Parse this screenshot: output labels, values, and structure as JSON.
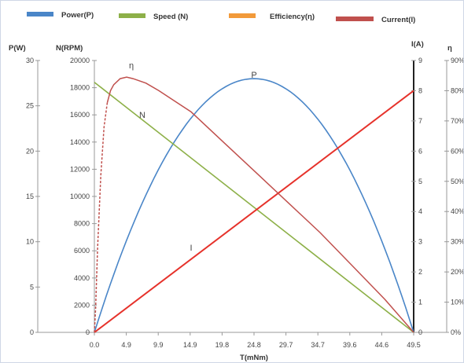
{
  "chart_data": {
    "type": "line",
    "legend": [
      "Power(P)",
      "Speed (N)",
      "Efficiency(η)",
      "Current(I)"
    ],
    "legend_placement": "top",
    "colors": {
      "power": "#4a86c8",
      "speed": "#8db048",
      "efficiency": "#f29a3a",
      "current": "#c0504d",
      "current_line": "#e6322b"
    },
    "x_axis": {
      "label": "T(mNm)",
      "ticks": [
        "0.0",
        "4.9",
        "9.9",
        "14.9",
        "19.8",
        "24.8",
        "29.7",
        "34.7",
        "39.6",
        "44.6",
        "49.5"
      ],
      "range": [
        0,
        49.5
      ]
    },
    "y_axes": {
      "power": {
        "label": "P(W)",
        "range": [
          0,
          30
        ],
        "ticks": [
          "0",
          "5",
          "10",
          "15",
          "20",
          "25",
          "30"
        ]
      },
      "speed": {
        "label": "N(RPM)",
        "range": [
          0,
          20000
        ],
        "ticks": [
          "0",
          "2000",
          "4000",
          "6000",
          "8000",
          "10000",
          "12000",
          "14000",
          "16000",
          "18000",
          "20000"
        ]
      },
      "current": {
        "label": "I(A)",
        "range": [
          0,
          9
        ],
        "ticks": [
          "0",
          "1",
          "2",
          "3",
          "4",
          "5",
          "6",
          "7",
          "8",
          "9"
        ]
      },
      "efficiency": {
        "label": "η",
        "range": [
          0,
          90
        ],
        "ticks": [
          "0%",
          "10%",
          "20%",
          "30%",
          "40%",
          "50%",
          "60%",
          "70%",
          "80%",
          "90%"
        ]
      }
    },
    "curve_labels": {
      "power": "P",
      "speed": "N",
      "efficiency": "η",
      "current": "I"
    },
    "series": [
      {
        "name": "Power(P)",
        "axis": "power",
        "x": [
          0,
          24.75,
          49.5
        ],
        "y": [
          0,
          28,
          0
        ],
        "shape": "parabola"
      },
      {
        "name": "Speed (N)",
        "axis": "speed",
        "x": [
          0,
          49.5
        ],
        "y": [
          18400,
          0
        ]
      },
      {
        "name": "Current(I)",
        "axis": "current",
        "x": [
          0,
          49.5
        ],
        "y": [
          0,
          8
        ]
      },
      {
        "name": "Efficiency(η)",
        "axis": "efficiency",
        "x": [
          0.2,
          0.5,
          1.0,
          1.5,
          2.0,
          2.5,
          3.0,
          4.0,
          5.0,
          6.0,
          8.0,
          10.0,
          15.0,
          20.0,
          25.0,
          30.0,
          35.0,
          40.0,
          45.0,
          49.5
        ],
        "y": [
          8,
          28,
          52,
          68,
          76,
          80,
          82,
          84,
          84.5,
          84,
          82.5,
          80,
          73,
          63,
          53,
          43,
          33,
          22,
          11,
          0
        ]
      }
    ],
    "grid": false
  }
}
